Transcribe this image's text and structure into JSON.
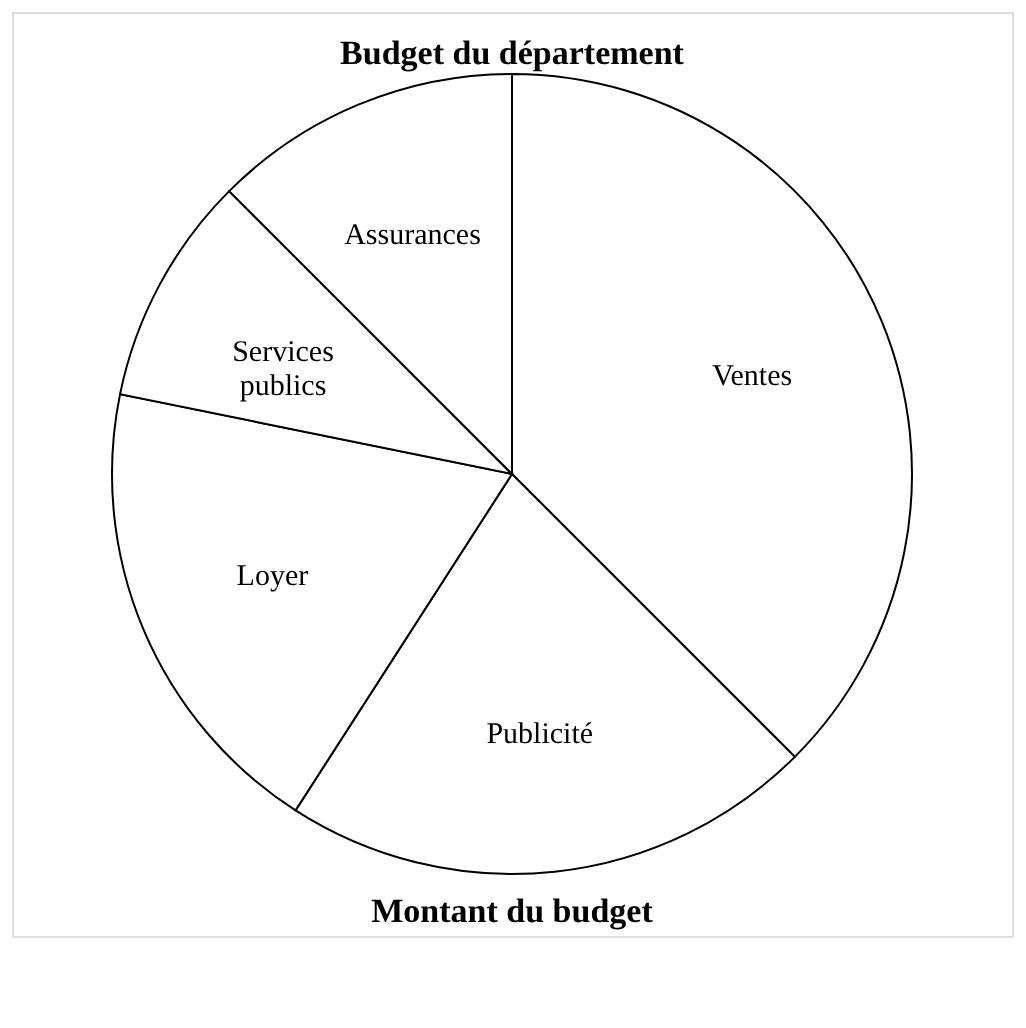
{
  "chart_data": {
    "type": "pie",
    "title": "Budget du département",
    "categories": [
      "Ventes",
      "Publicité",
      "Loyer",
      "Services publics",
      "Assurances"
    ],
    "values": [
      37.5,
      21.6,
      19.1,
      9.3,
      12.5
    ],
    "colors": [
      "#ffffff",
      "#ffffff",
      "#ffffff",
      "#ffffff",
      "#ffffff"
    ],
    "annotations": [
      "Montant du budget"
    ],
    "legend": false
  }
}
